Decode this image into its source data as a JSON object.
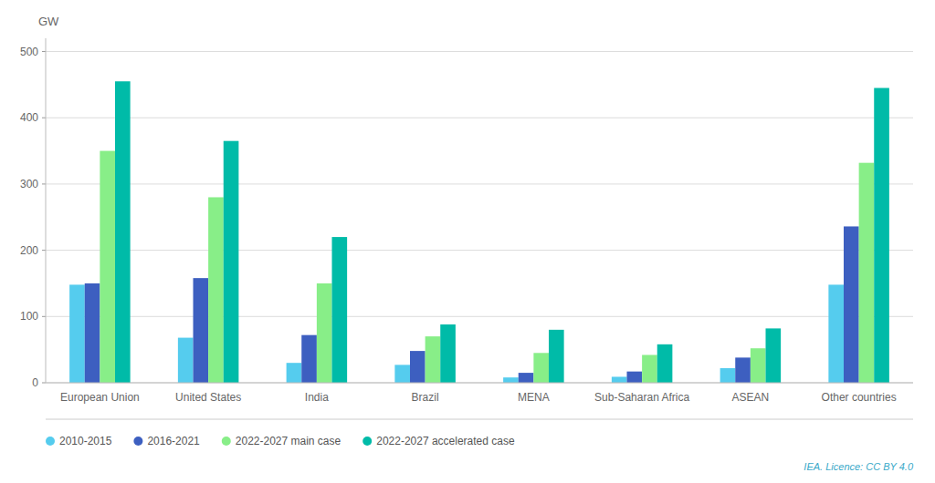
{
  "chart_data": {
    "type": "bar",
    "ylabel": "GW",
    "categories": [
      "European Union",
      "United States",
      "India",
      "Brazil",
      "MENA",
      "Sub-Saharan Africa",
      "ASEAN",
      "Other countries"
    ],
    "series": [
      {
        "name": "2010-2015",
        "color": "#55CCEE",
        "values": [
          148,
          68,
          30,
          27,
          8,
          9,
          22,
          148
        ]
      },
      {
        "name": "2016-2021",
        "color": "#3D5FC0",
        "values": [
          150,
          158,
          72,
          48,
          15,
          17,
          38,
          236
        ]
      },
      {
        "name": "2022-2027 main case",
        "color": "#88EE88",
        "values": [
          350,
          280,
          150,
          70,
          45,
          42,
          52,
          332
        ]
      },
      {
        "name": "2022-2027 accelerated case",
        "color": "#00BBA8",
        "values": [
          455,
          365,
          220,
          88,
          80,
          58,
          82,
          445
        ]
      }
    ],
    "ylim": [
      0,
      520
    ],
    "yticks": [
      0,
      100,
      200,
      300,
      400,
      500
    ],
    "grid": true,
    "legend": "bottom",
    "annotations": [
      "IEA. Licence: CC BY 4.0"
    ]
  }
}
